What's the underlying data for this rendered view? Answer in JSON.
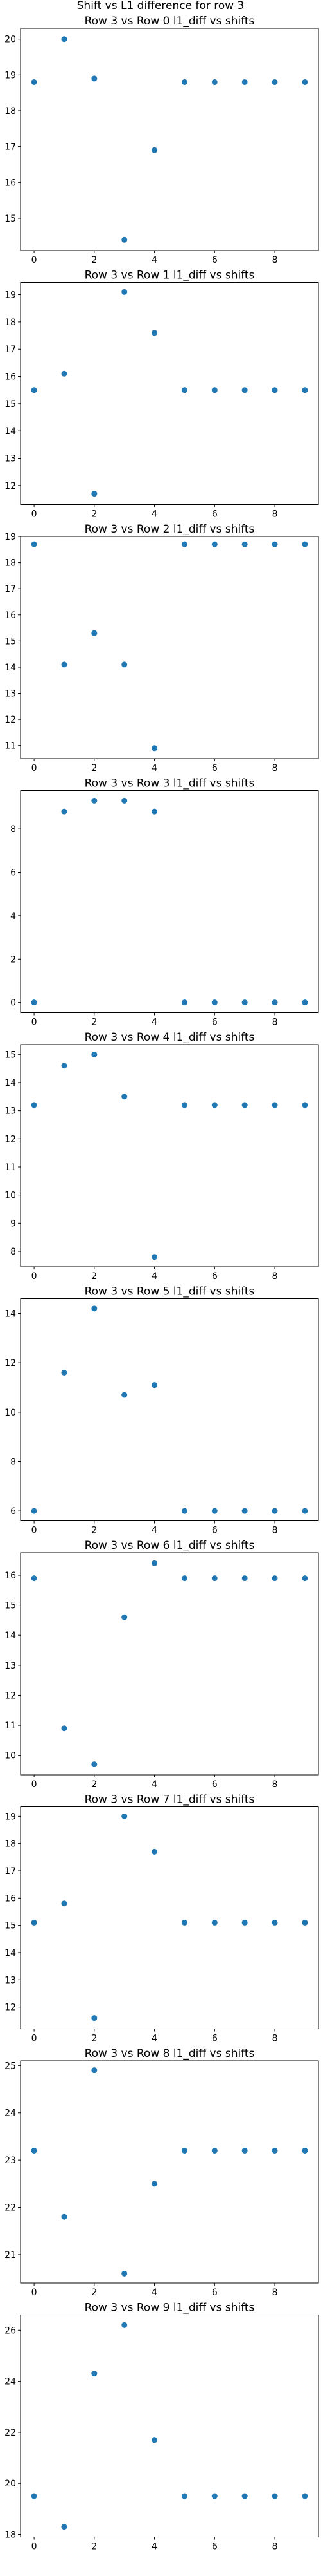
{
  "figure": {
    "suptitle": "Shift vs L1 difference for row 3",
    "marker_color": "#1f77b4"
  },
  "chart_data": [
    {
      "type": "scatter",
      "title": "Row 3 vs Row 0 l1_diff vs shifts",
      "x": [
        0,
        1,
        2,
        3,
        4,
        5,
        6,
        7,
        8,
        9
      ],
      "y": [
        18.8,
        20.0,
        18.9,
        14.4,
        16.9,
        18.8,
        18.8,
        18.8,
        18.8,
        18.8
      ],
      "xlim": [
        -0.45,
        9.45
      ],
      "ylim": [
        14.1,
        20.3
      ],
      "xticks": [
        0,
        2,
        4,
        6,
        8
      ],
      "yticks": [
        15,
        16,
        17,
        18,
        19,
        20
      ],
      "xlabel": "",
      "ylabel": "",
      "grid": false
    },
    {
      "type": "scatter",
      "title": "Row 3 vs Row 1 l1_diff vs shifts",
      "x": [
        0,
        1,
        2,
        3,
        4,
        5,
        6,
        7,
        8,
        9
      ],
      "y": [
        15.5,
        16.1,
        11.7,
        19.1,
        17.6,
        15.5,
        15.5,
        15.5,
        15.5,
        15.5
      ],
      "xlim": [
        -0.45,
        9.45
      ],
      "ylim": [
        11.3,
        19.45
      ],
      "xticks": [
        0,
        2,
        4,
        6,
        8
      ],
      "yticks": [
        12,
        13,
        14,
        15,
        16,
        17,
        18,
        19
      ],
      "xlabel": "",
      "ylabel": "",
      "grid": false
    },
    {
      "type": "scatter",
      "title": "Row 3 vs Row 2 l1_diff vs shifts",
      "x": [
        0,
        1,
        2,
        3,
        4,
        5,
        6,
        7,
        8,
        9
      ],
      "y": [
        18.7,
        14.1,
        15.3,
        14.1,
        10.9,
        18.7,
        18.7,
        18.7,
        18.7,
        18.7
      ],
      "xlim": [
        -0.45,
        9.45
      ],
      "ylim": [
        10.5,
        19.0
      ],
      "xticks": [
        0,
        2,
        4,
        6,
        8
      ],
      "yticks": [
        11,
        12,
        13,
        14,
        15,
        16,
        17,
        18,
        19
      ],
      "xlabel": "",
      "ylabel": "",
      "grid": false
    },
    {
      "type": "scatter",
      "title": "Row 3 vs Row 3 l1_diff vs shifts",
      "x": [
        0,
        1,
        2,
        3,
        4,
        5,
        6,
        7,
        8,
        9
      ],
      "y": [
        0.0,
        8.8,
        9.3,
        9.3,
        8.8,
        0.0,
        0.0,
        0.0,
        0.0,
        0.0
      ],
      "xlim": [
        -0.45,
        9.45
      ],
      "ylim": [
        -0.47,
        9.77
      ],
      "xticks": [
        0,
        2,
        4,
        6,
        8
      ],
      "yticks": [
        0,
        2,
        4,
        6,
        8
      ],
      "xlabel": "",
      "ylabel": "",
      "grid": false
    },
    {
      "type": "scatter",
      "title": "Row 3 vs Row 4 l1_diff vs shifts",
      "x": [
        0,
        1,
        2,
        3,
        4,
        5,
        6,
        7,
        8,
        9
      ],
      "y": [
        13.2,
        14.6,
        15.0,
        13.5,
        7.8,
        13.2,
        13.2,
        13.2,
        13.2,
        13.2
      ],
      "xlim": [
        -0.45,
        9.45
      ],
      "ylim": [
        7.45,
        15.35
      ],
      "xticks": [
        0,
        2,
        4,
        6,
        8
      ],
      "yticks": [
        8,
        9,
        10,
        11,
        12,
        13,
        14,
        15
      ],
      "xlabel": "",
      "ylabel": "",
      "grid": false
    },
    {
      "type": "scatter",
      "title": "Row 3 vs Row 5 l1_diff vs shifts",
      "x": [
        0,
        1,
        2,
        3,
        4,
        5,
        6,
        7,
        8,
        9
      ],
      "y": [
        6.0,
        11.6,
        14.2,
        10.7,
        11.1,
        6.0,
        6.0,
        6.0,
        6.0,
        6.0
      ],
      "xlim": [
        -0.45,
        9.45
      ],
      "ylim": [
        5.6,
        14.6
      ],
      "xticks": [
        0,
        2,
        4,
        6,
        8
      ],
      "yticks": [
        6,
        8,
        10,
        12,
        14
      ],
      "xlabel": "",
      "ylabel": "",
      "grid": false
    },
    {
      "type": "scatter",
      "title": "Row 3 vs Row 6 l1_diff vs shifts",
      "x": [
        0,
        1,
        2,
        3,
        4,
        5,
        6,
        7,
        8,
        9
      ],
      "y": [
        15.9,
        10.9,
        9.7,
        14.6,
        16.4,
        15.9,
        15.9,
        15.9,
        15.9,
        15.9
      ],
      "xlim": [
        -0.45,
        9.45
      ],
      "ylim": [
        9.35,
        16.75
      ],
      "xticks": [
        0,
        2,
        4,
        6,
        8
      ],
      "yticks": [
        10,
        11,
        12,
        13,
        14,
        15,
        16
      ],
      "xlabel": "",
      "ylabel": "",
      "grid": false
    },
    {
      "type": "scatter",
      "title": "Row 3 vs Row 7 l1_diff vs shifts",
      "x": [
        0,
        1,
        2,
        3,
        4,
        5,
        6,
        7,
        8,
        9
      ],
      "y": [
        15.1,
        15.8,
        11.6,
        19.0,
        17.7,
        15.1,
        15.1,
        15.1,
        15.1,
        15.1
      ],
      "xlim": [
        -0.45,
        9.45
      ],
      "ylim": [
        11.2,
        19.35
      ],
      "xticks": [
        0,
        2,
        4,
        6,
        8
      ],
      "yticks": [
        12,
        13,
        14,
        15,
        16,
        17,
        18,
        19
      ],
      "xlabel": "",
      "ylabel": "",
      "grid": false
    },
    {
      "type": "scatter",
      "title": "Row 3 vs Row 8 l1_diff vs shifts",
      "x": [
        0,
        1,
        2,
        3,
        4,
        5,
        6,
        7,
        8,
        9
      ],
      "y": [
        23.2,
        21.8,
        24.9,
        20.6,
        22.5,
        23.2,
        23.2,
        23.2,
        23.2,
        23.2
      ],
      "xlim": [
        -0.45,
        9.45
      ],
      "ylim": [
        20.4,
        25.1
      ],
      "xticks": [
        0,
        2,
        4,
        6,
        8
      ],
      "yticks": [
        21,
        22,
        23,
        24,
        25
      ],
      "xlabel": "",
      "ylabel": "",
      "grid": false
    },
    {
      "type": "scatter",
      "title": "Row 3 vs Row 9 l1_diff vs shifts",
      "x": [
        0,
        1,
        2,
        3,
        4,
        5,
        6,
        7,
        8,
        9
      ],
      "y": [
        19.5,
        18.3,
        24.3,
        26.2,
        21.7,
        19.5,
        19.5,
        19.5,
        19.5,
        19.5
      ],
      "xlim": [
        -0.45,
        9.45
      ],
      "ylim": [
        17.9,
        26.6
      ],
      "xticks": [
        0,
        2,
        4,
        6,
        8
      ],
      "yticks": [
        18,
        20,
        22,
        24,
        26
      ],
      "xlabel": "",
      "ylabel": "",
      "grid": false
    }
  ]
}
